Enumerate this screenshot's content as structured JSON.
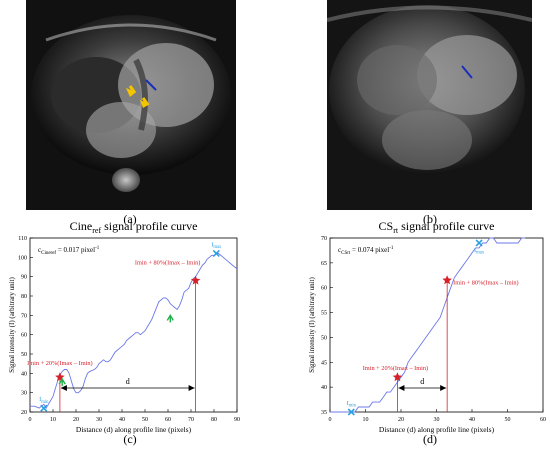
{
  "figure": {
    "panels": [
      {
        "id": "a",
        "label": "(a)",
        "image": "cine-mri-four-chamber"
      },
      {
        "id": "b",
        "label": "(b)",
        "image": "cs-rt-mri-four-chamber"
      },
      {
        "id": "c",
        "label": "(c)"
      },
      {
        "id": "d",
        "label": "(d)"
      }
    ],
    "colors": {
      "profile_line": "#6b78e8",
      "marker_red": "#d6202a",
      "marker_cyan": "#2ba0e0",
      "arrow_yellow": "#f5c400",
      "arrow_green": "#22b04a",
      "mri_line": "#1a2fb8"
    }
  },
  "chart_data": [
    {
      "type": "line",
      "title_main": "Cine",
      "title_sub": "ref",
      "title_rest": " signal profile curve",
      "xlabel": "Distance (d) along profile line (pixels)",
      "ylabel": "Signal intensity (I) (arbitrary unit)",
      "xlim": [
        0,
        90
      ],
      "ylim": [
        20,
        110
      ],
      "xticks": [
        0,
        10,
        20,
        30,
        40,
        50,
        60,
        70,
        80,
        90
      ],
      "yticks": [
        20,
        30,
        40,
        50,
        60,
        70,
        80,
        90,
        100,
        110
      ],
      "annotation_c_main": "c",
      "annotation_c_sub": "Cineref",
      "annotation_c_value": " = 0.017 pixel",
      "annotation_c_exp": "-1",
      "label_imax": "Imax",
      "label_imin": "Imin",
      "label_20": "Imin + 20%(Imax – Imin)",
      "label_80": "Imin + 80%(Imax – Imin)",
      "label_d": "d",
      "x": [
        0,
        2,
        4,
        6,
        7,
        8,
        10,
        11,
        12,
        13,
        14,
        15,
        16,
        17,
        18,
        19,
        20,
        21,
        22,
        23,
        24,
        25,
        26,
        28,
        29,
        30,
        31,
        32,
        33,
        34,
        35,
        36,
        37,
        38,
        39,
        40,
        41,
        42,
        43,
        44,
        45,
        46,
        47,
        48,
        49,
        50,
        51,
        52,
        53,
        54,
        55,
        56,
        57,
        58,
        59,
        60,
        61,
        62,
        63,
        64,
        65,
        66,
        67,
        68,
        69,
        70,
        71,
        72,
        73,
        74,
        75,
        76,
        77,
        78,
        79,
        80,
        81,
        82,
        83,
        84,
        85,
        86,
        87,
        88,
        89,
        90
      ],
      "y": [
        23,
        23,
        22,
        24,
        22,
        24,
        28,
        32,
        36,
        39,
        41,
        42,
        42,
        40,
        36,
        32,
        30,
        30,
        31,
        33,
        37,
        40,
        41,
        42,
        43,
        45,
        46,
        47,
        46,
        46,
        47,
        49,
        51,
        52,
        53,
        54,
        55,
        57,
        58,
        59,
        60,
        61,
        61,
        60,
        61,
        62,
        64,
        66,
        68,
        71,
        74,
        77,
        78,
        79,
        79,
        78,
        76,
        75,
        74,
        73,
        75,
        78,
        82,
        83,
        84,
        87,
        89,
        90,
        92,
        94,
        96,
        97,
        99,
        100,
        101,
        101,
        102,
        102,
        101,
        100,
        99,
        98,
        97,
        96,
        95,
        94
      ],
      "points": {
        "imin": {
          "x": 6,
          "y": 22
        },
        "imax": {
          "x": 81,
          "y": 102
        },
        "i20": {
          "x": 13,
          "y": 38
        },
        "i80": {
          "x": 72,
          "y": 88
        }
      },
      "green_arrows": [
        {
          "x": 14,
          "y": 37
        },
        {
          "x": 61,
          "y": 70
        }
      ]
    },
    {
      "type": "line",
      "title_main": "CS",
      "title_sub": "rt",
      "title_rest": " signal profile curve",
      "xlabel": "Distance (d) along profile line (pixels)",
      "ylabel": "Signal intensity (I) (arbitrary unit)",
      "xlim": [
        0,
        60
      ],
      "ylim": [
        35,
        70
      ],
      "xticks": [
        0,
        10,
        20,
        30,
        40,
        50,
        60
      ],
      "yticks": [
        35,
        40,
        45,
        50,
        55,
        60,
        65,
        70
      ],
      "annotation_c_main": "c",
      "annotation_c_sub": "CSrt",
      "annotation_c_value": " = 0.074 pixel",
      "annotation_c_exp": "-1",
      "label_imax": "Imax",
      "label_imin": "Imin",
      "label_20": "Imin + 20%(Imax – Imin)",
      "label_80": "Imin + 80%(Imax – Imin)",
      "label_d": "d",
      "x": [
        0,
        2,
        4,
        6,
        7,
        8,
        9,
        10,
        11,
        12,
        13,
        14,
        15,
        16,
        17,
        18,
        19,
        20,
        21,
        22,
        23,
        24,
        25,
        26,
        27,
        28,
        29,
        30,
        31,
        32,
        33,
        34,
        35,
        36,
        37,
        38,
        39,
        40,
        41,
        42,
        43,
        44,
        45,
        46,
        47,
        48,
        49,
        50,
        51,
        52,
        53,
        54,
        55
      ],
      "y": [
        35,
        35,
        35,
        35,
        35,
        36,
        36,
        36,
        36,
        37,
        37,
        37,
        38,
        39,
        39,
        40,
        41,
        42,
        43,
        45,
        46,
        47,
        48,
        49,
        50,
        51,
        52,
        53,
        54,
        56,
        58,
        60,
        62,
        63,
        64,
        65,
        66,
        67,
        68,
        68,
        69,
        69,
        70,
        70,
        69,
        69,
        69,
        69,
        69,
        69,
        69,
        70,
        70
      ],
      "points": {
        "imin": {
          "x": 6,
          "y": 35
        },
        "imax": {
          "x": 42,
          "y": 69
        },
        "i20": {
          "x": 19,
          "y": 42
        },
        "i80": {
          "x": 33,
          "y": 61.5
        }
      },
      "green_arrows": []
    }
  ]
}
